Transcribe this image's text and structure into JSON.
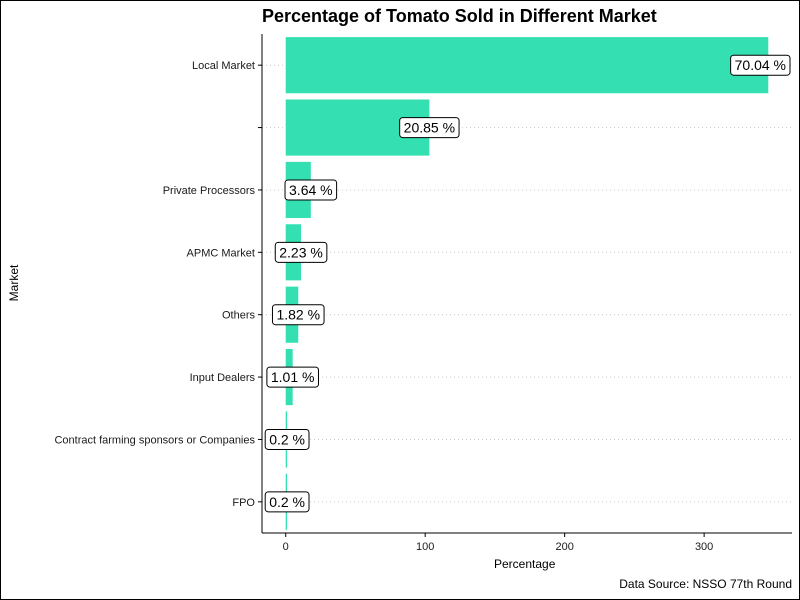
{
  "chart_data": {
    "type": "bar",
    "orientation": "horizontal",
    "title": "Percentage of Tomato Sold in Different Market",
    "xlabel": "Percentage",
    "ylabel": "Market",
    "caption": "Data Source: NSSO 77th Round",
    "categories": [
      "Local Market",
      "",
      "Private Processors",
      "APMC Market",
      "Others",
      "Input Dealers",
      "Contract farming sponsors or Companies",
      "FPO"
    ],
    "values": [
      346,
      103,
      18,
      11,
      9,
      5,
      1,
      1
    ],
    "data_labels": [
      "70.04 %",
      "20.85 %",
      "3.64 %",
      "2.23 %",
      "1.82 %",
      "1.01 %",
      "0.2 %",
      "0.2 %"
    ],
    "x_ticks": [
      0,
      100,
      200,
      300
    ],
    "xlim": [
      -17,
      363
    ],
    "grid": "horizontal dotted",
    "legend": "none",
    "bar_color": "#34e0b1"
  }
}
